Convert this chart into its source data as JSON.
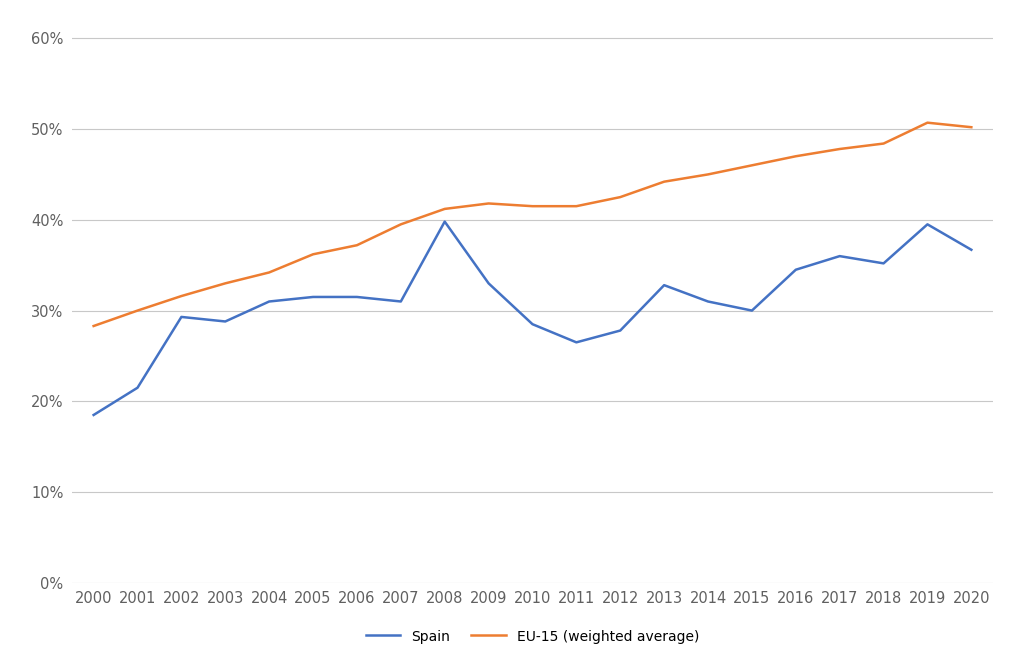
{
  "years": [
    2000,
    2001,
    2002,
    2003,
    2004,
    2005,
    2006,
    2007,
    2008,
    2009,
    2010,
    2011,
    2012,
    2013,
    2014,
    2015,
    2016,
    2017,
    2018,
    2019,
    2020
  ],
  "spain": [
    0.185,
    0.215,
    0.293,
    0.288,
    0.31,
    0.315,
    0.315,
    0.31,
    0.398,
    0.33,
    0.285,
    0.265,
    0.278,
    0.328,
    0.31,
    0.3,
    0.345,
    0.36,
    0.352,
    0.395,
    0.367
  ],
  "eu15": [
    0.283,
    0.3,
    0.316,
    0.33,
    0.342,
    0.362,
    0.372,
    0.395,
    0.412,
    0.418,
    0.415,
    0.415,
    0.425,
    0.442,
    0.45,
    0.46,
    0.47,
    0.478,
    0.484,
    0.507,
    0.502
  ],
  "spain_color": "#4472C4",
  "eu15_color": "#ED7D31",
  "spain_label": "Spain",
  "eu15_label": "EU-15 (weighted average)",
  "ylim": [
    0.0,
    0.62
  ],
  "yticks": [
    0.0,
    0.1,
    0.2,
    0.3,
    0.4,
    0.5,
    0.6
  ],
  "background_color": "#ffffff",
  "grid_color": "#c8c8c8",
  "line_width": 1.8,
  "legend_fontsize": 10,
  "tick_fontsize": 10.5
}
